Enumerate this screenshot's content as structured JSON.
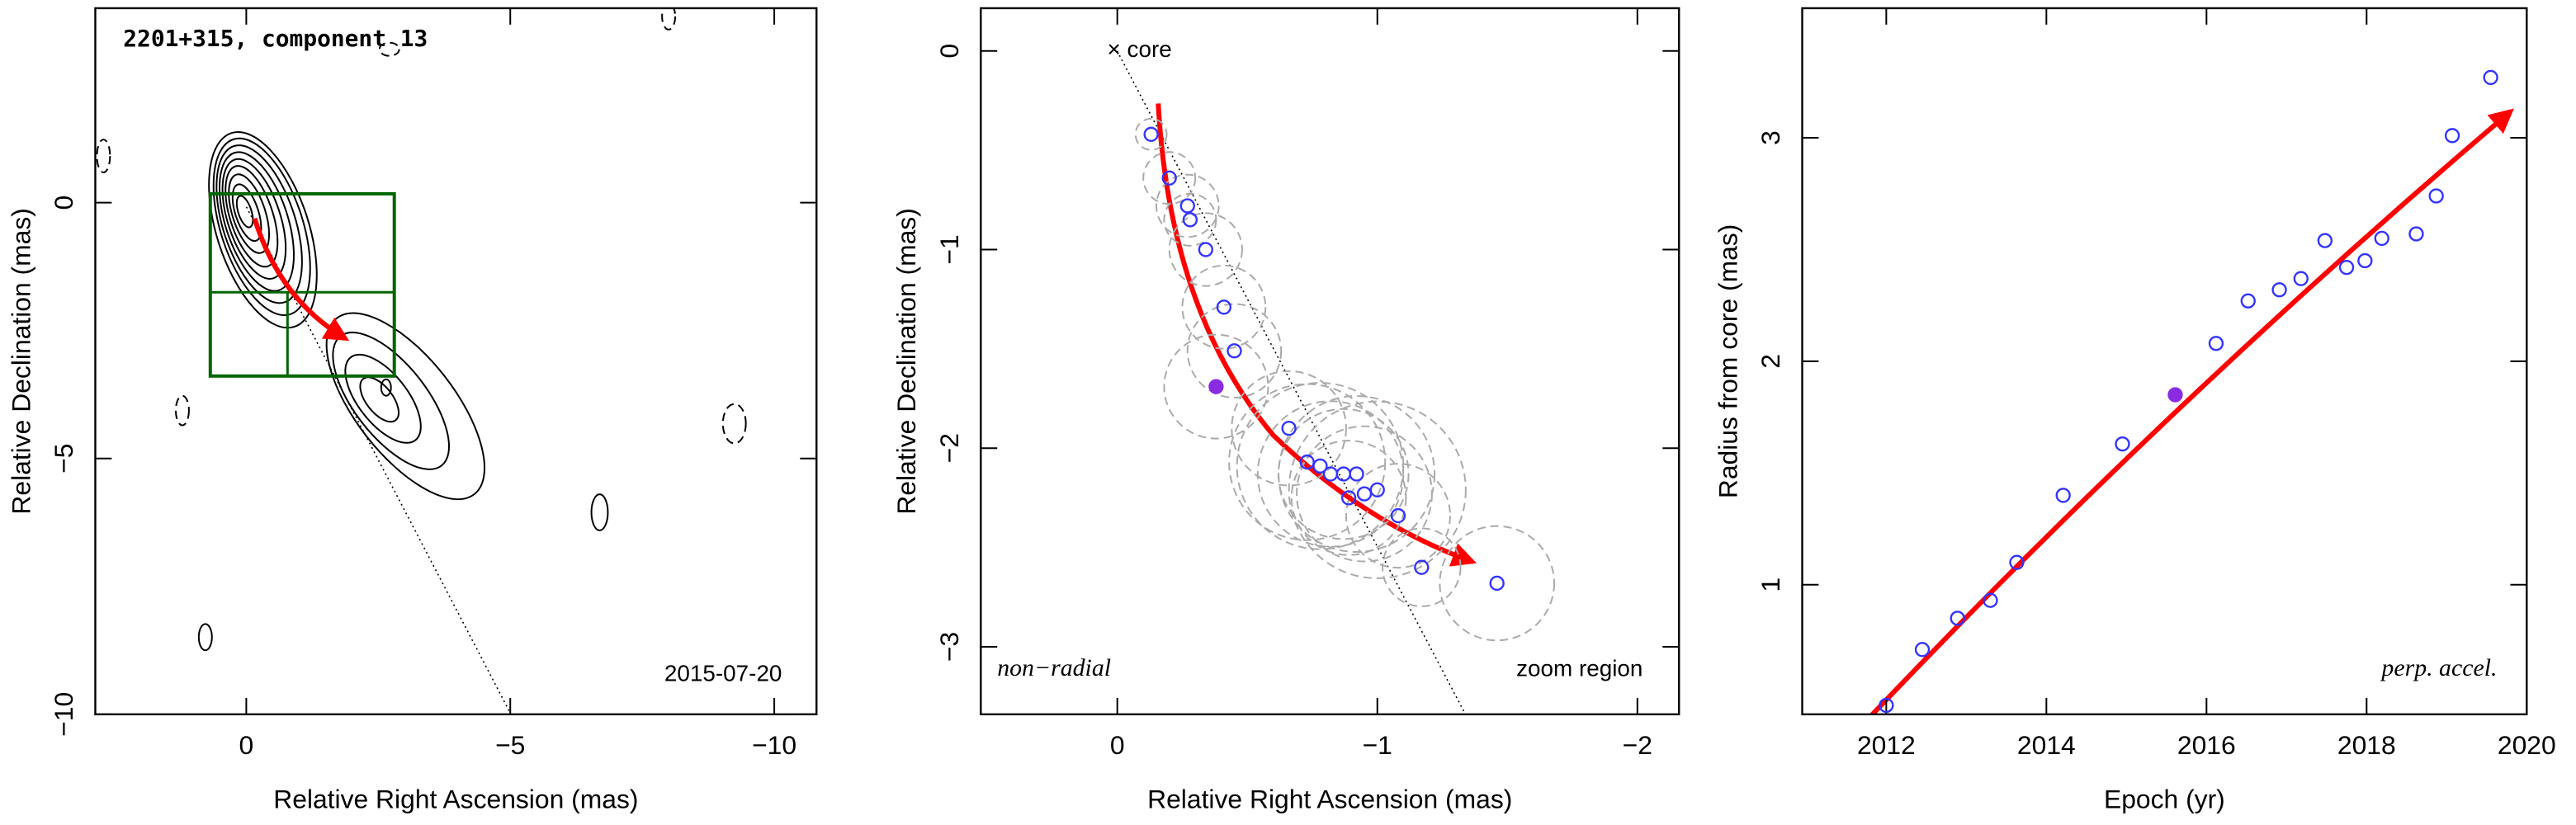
{
  "chart_data": [
    {
      "type": "contour",
      "title": "2201+315, component 13",
      "annotations": [
        "2015-07-20"
      ],
      "xlabel": "Relative Right Ascension (mas)",
      "ylabel": "Relative Declination (mas)",
      "xlim": [
        2.86,
        -10.8
      ],
      "ylim": [
        -10,
        3.8
      ],
      "xticks": [
        0,
        {
          "value": -5,
          "label": "−5"
        },
        {
          "value": -10,
          "label": "−10"
        }
      ],
      "yticks": [
        0,
        {
          "value": -5,
          "label": "−5"
        },
        {
          "value": -10,
          "label": "−10"
        }
      ]
    },
    {
      "type": "scatter",
      "annotations": [
        "× core",
        "non−radial",
        "zoom region"
      ],
      "xlabel": "Relative Right Ascension (mas)",
      "ylabel": "Relative Declination (mas)",
      "xlim": [
        0.525,
        -2.16
      ],
      "ylim": [
        -3.34,
        0.215
      ],
      "xticks": [
        0,
        {
          "value": -1,
          "label": "−1"
        },
        {
          "value": -2,
          "label": "−2"
        }
      ],
      "yticks": [
        0,
        {
          "value": -1,
          "label": "−1"
        },
        {
          "value": -2,
          "label": "−2"
        },
        {
          "value": -3,
          "label": "−3"
        }
      ],
      "color": "#3333ff",
      "highlight": 7,
      "highlight_color": "#8a2be2",
      "size_color": "#aaaaaa",
      "x": [
        -0.13,
        -0.2,
        -0.27,
        -0.28,
        -0.34,
        -0.41,
        -0.45,
        -0.38,
        -0.66,
        -0.73,
        -0.78,
        -0.82,
        -0.87,
        -0.92,
        -0.89,
        -0.95,
        -1.0,
        -1.08,
        -1.17,
        -1.46
      ],
      "values": [
        -0.42,
        -0.64,
        -0.78,
        -0.85,
        -1.0,
        -1.29,
        -1.51,
        -1.69,
        -1.9,
        -2.07,
        -2.09,
        -2.13,
        -2.13,
        -2.13,
        -2.25,
        -2.23,
        -2.21,
        -2.34,
        -2.6,
        -2.68
      ],
      "sizes": [
        0.06,
        0.1,
        0.12,
        0.1,
        0.14,
        0.16,
        0.18,
        0.2,
        0.22,
        0.3,
        0.32,
        0.28,
        0.25,
        0.3,
        0.22,
        0.26,
        0.34,
        0.2,
        0.15,
        0.22
      ]
    },
    {
      "type": "scatter",
      "annotations": [
        "perp. accel."
      ],
      "xlabel": "Epoch (yr)",
      "ylabel": "Radius from core (mas)",
      "xlim": [
        2010.95,
        2020
      ],
      "ylim": [
        0.42,
        3.58
      ],
      "xticks": [
        2012,
        2014,
        2016,
        2018,
        2020
      ],
      "yticks": [
        1,
        2,
        3
      ],
      "color": "#3333ff",
      "highlight": 7,
      "highlight_color": "#8a2be2",
      "x": [
        2012.0,
        2012.45,
        2012.89,
        2013.3,
        2013.63,
        2014.21,
        2014.95,
        2015.61,
        2016.12,
        2016.52,
        2016.91,
        2017.18,
        2017.48,
        2017.75,
        2017.98,
        2018.19,
        2018.62,
        2018.87,
        2019.07,
        2019.55
      ],
      "values": [
        0.46,
        0.71,
        0.85,
        0.93,
        1.1,
        1.4,
        1.63,
        1.85,
        2.08,
        2.27,
        2.32,
        2.37,
        2.54,
        2.42,
        2.45,
        2.55,
        2.57,
        2.74,
        3.01,
        3.27
      ]
    }
  ]
}
